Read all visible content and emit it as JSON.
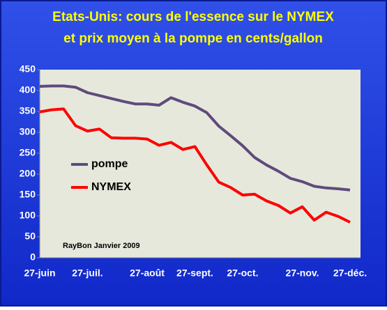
{
  "chart_data": {
    "type": "line",
    "title": [
      "Etats-Unis: cours de l'essence sur le NYMEX",
      "et prix moyen à la pompe en cents/gallon"
    ],
    "annotation": "RayBon Janvier 2009",
    "categories": [
      "27-juin",
      null,
      null,
      null,
      "27-juil.",
      null,
      null,
      null,
      null,
      "27-août",
      null,
      null,
      null,
      "27-sept.",
      null,
      null,
      null,
      "27-oct.",
      null,
      null,
      null,
      null,
      "27-nov.",
      null,
      null,
      null,
      "27-déc."
    ],
    "series": [
      {
        "name": "pompe",
        "color": "#604a7b",
        "values": [
          410,
          411,
          411,
          408,
          395,
          388,
          381,
          374,
          368,
          368,
          365,
          383,
          372,
          363,
          347,
          315,
          292,
          268,
          240,
          222,
          207,
          190,
          182,
          171,
          167,
          165,
          162
        ]
      },
      {
        "name": "NYMEX",
        "color": "#ff0000",
        "values": [
          349,
          354,
          356,
          316,
          303,
          308,
          287,
          286,
          286,
          284,
          269,
          276,
          259,
          266,
          222,
          181,
          168,
          150,
          152,
          136,
          125,
          107,
          122,
          90,
          109,
          99,
          85
        ]
      }
    ],
    "ylim": [
      0,
      450
    ],
    "yticks": [
      0,
      50,
      100,
      150,
      200,
      250,
      300,
      350,
      400,
      450
    ],
    "grid": false,
    "legend": "left"
  }
}
